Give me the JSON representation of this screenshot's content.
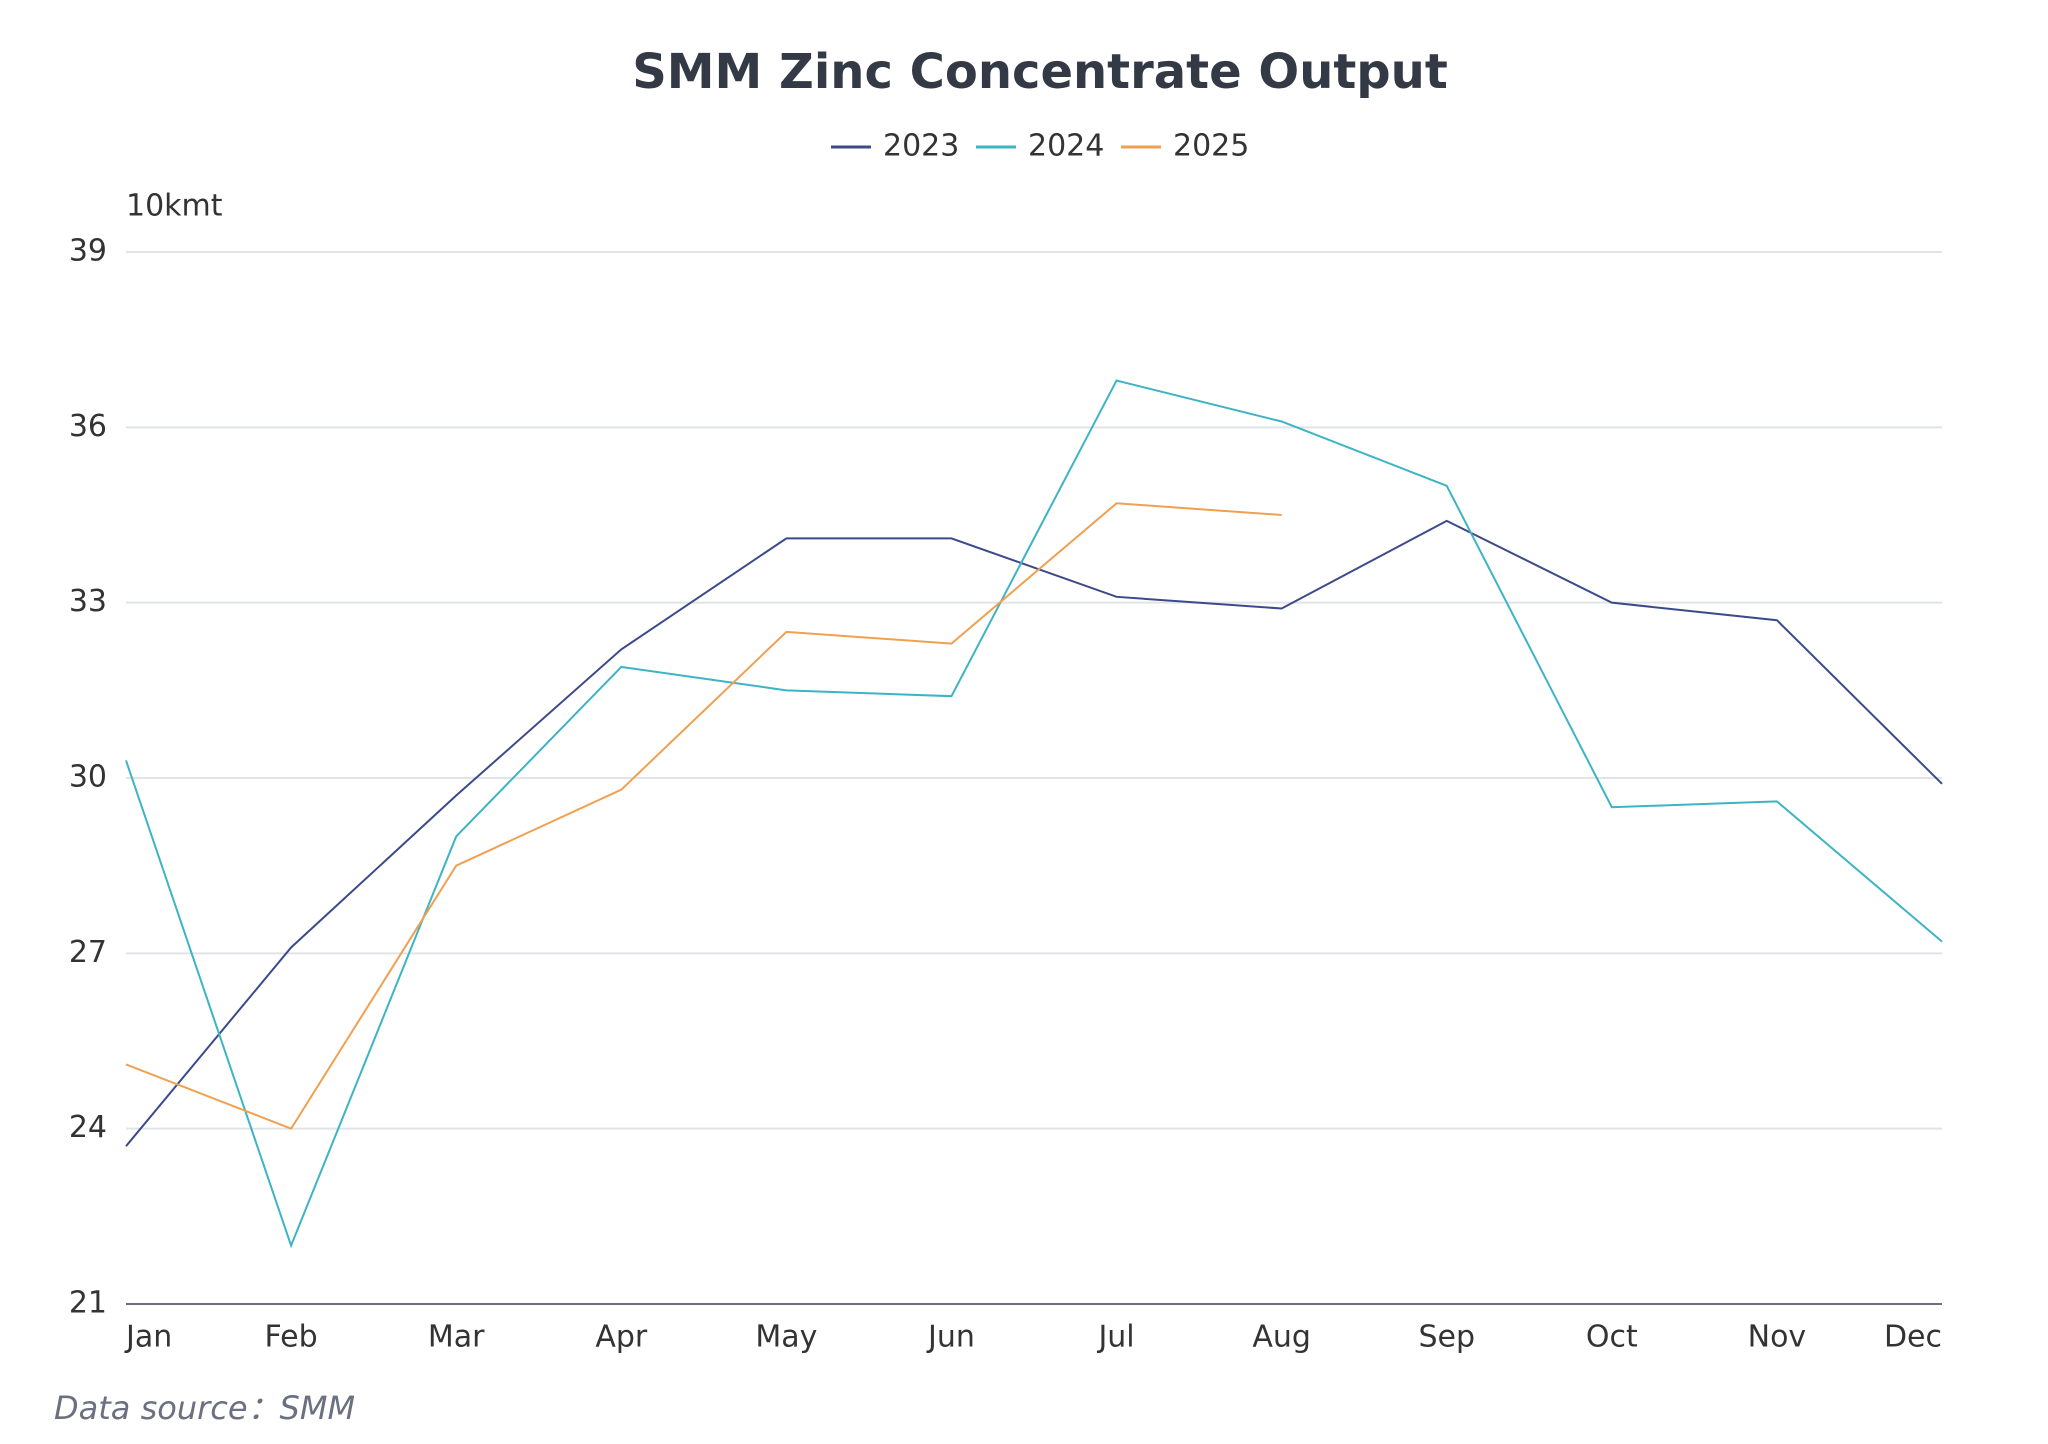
{
  "chart_data": {
    "type": "line",
    "title": "SMM Zinc Concentrate Output",
    "y_axis_label": "10kmt",
    "source": "Data source：SMM",
    "categories": [
      "Jan",
      "Feb",
      "Mar",
      "Apr",
      "May",
      "Jun",
      "Jul",
      "Aug",
      "Sep",
      "Oct",
      "Nov",
      "Dec"
    ],
    "series": [
      {
        "name": "2023",
        "color": "#3d4a8a",
        "values": [
          23.7,
          27.1,
          29.7,
          32.2,
          34.1,
          34.1,
          33.1,
          32.9,
          34.4,
          33.0,
          32.7,
          29.9
        ]
      },
      {
        "name": "2024",
        "color": "#3cb4c4",
        "values": [
          30.3,
          22.0,
          29.0,
          31.9,
          31.5,
          31.4,
          36.8,
          36.1,
          35.0,
          29.5,
          29.6,
          27.2
        ]
      },
      {
        "name": "2025",
        "color": "#f0a050",
        "values": [
          25.1,
          24.0,
          28.5,
          29.8,
          32.5,
          32.3,
          34.7,
          34.5,
          null,
          null,
          null,
          null
        ]
      }
    ],
    "ylim": [
      21,
      39
    ],
    "yticks": [
      21,
      24,
      27,
      30,
      33,
      36,
      39
    ],
    "grid": true,
    "legend": "top"
  }
}
